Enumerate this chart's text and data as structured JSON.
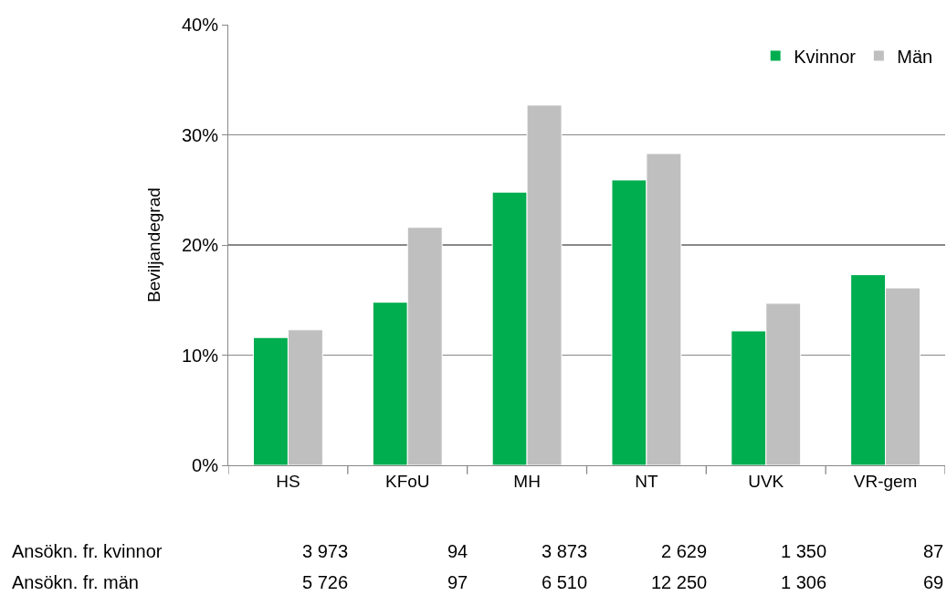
{
  "chart_data": {
    "type": "bar",
    "ylabel": "Beviljandegrad",
    "categories": [
      "HS",
      "KFoU",
      "MH",
      "NT",
      "UVK",
      "VR-gem"
    ],
    "series": [
      {
        "name": "Kvinnor",
        "color": "#00ad4f",
        "values": [
          11.6,
          14.8,
          24.8,
          25.9,
          12.2,
          17.3
        ]
      },
      {
        "name": "Män",
        "color": "#bfbfbf",
        "values": [
          12.3,
          21.6,
          32.7,
          28.3,
          14.7,
          16.1
        ]
      }
    ],
    "ylim": [
      0,
      40
    ],
    "yticks": [
      {
        "value": 0,
        "label": "0%"
      },
      {
        "value": 10,
        "label": "10%"
      },
      {
        "value": 20,
        "label": "20%"
      },
      {
        "value": 30,
        "label": "30%"
      },
      {
        "value": 40,
        "label": "40%"
      }
    ],
    "grid": "y",
    "legend": "top right",
    "annotations": [
      "Ansökn. fr. kvinnor",
      "3 973",
      "94",
      "3 873",
      "2 629",
      "1 350",
      "87",
      "Ansökn. fr. män",
      "5 726",
      "97",
      "6 510",
      "12 250",
      "1 306",
      "69"
    ]
  }
}
